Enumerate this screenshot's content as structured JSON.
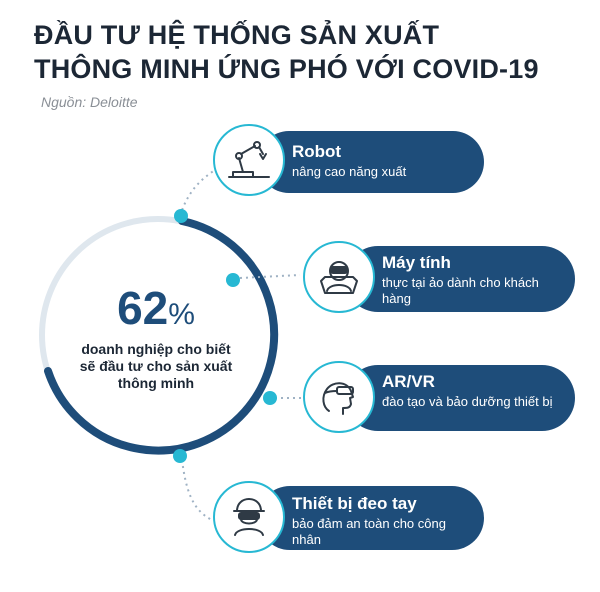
{
  "header": {
    "title_line1": "ĐẦU TƯ HỆ THỐNG SẢN XUẤT",
    "title_line2": "THÔNG MINH ỨNG PHÓ VỚI COVID-19",
    "source": "Nguồn: Deloitte"
  },
  "stat": {
    "value": "62",
    "symbol": "%",
    "description": "doanh nghiệp cho biết sẽ đầu tư cho sản xuất thông minh"
  },
  "items": [
    {
      "title": "Robot",
      "desc": "nâng cao năng xuất",
      "icon": "robot-arm-icon"
    },
    {
      "title": "Máy tính",
      "desc": "thực tại ảo dành cho khách hàng",
      "icon": "vr-user-icon"
    },
    {
      "title": "AR/VR",
      "desc": "đào tạo và bảo dưỡng thiết bị",
      "icon": "ar-headset-icon"
    },
    {
      "title": "Thiết bị đeo tay",
      "desc": "bảo đảm an toàn cho công nhân",
      "icon": "worker-helmet-icon"
    }
  ],
  "colors": {
    "navy": "#1e4d7a",
    "cyan": "#27b8d3",
    "text": "#1c2735"
  }
}
